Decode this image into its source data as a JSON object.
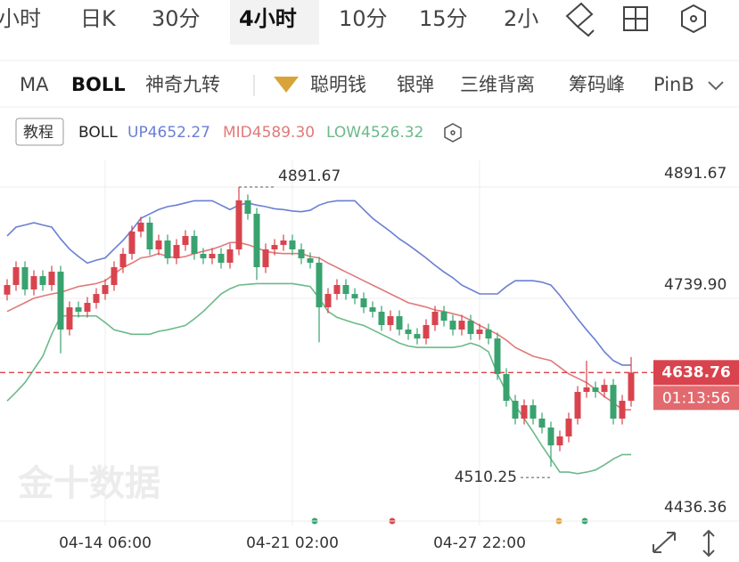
{
  "tabs": [
    "小时",
    "日K",
    "30分",
    "4小时",
    "10分",
    "15分",
    "2小"
  ],
  "indicators": [
    "MA",
    "BOLL",
    "神奇九转",
    "聪明钱",
    "银弹",
    "三维背离",
    "筹码峰",
    "PinB"
  ],
  "legend": {
    "tutorial": "教程",
    "name": "BOLL",
    "up": "UP4652.27",
    "mid": "MID4589.30",
    "low": "LOW4526.32"
  },
  "watermark": "金十数据",
  "chart_data": {
    "type": "candlestick",
    "categories": [
      null,
      null,
      null,
      null,
      null,
      null,
      null,
      null,
      null,
      null,
      null,
      "04-14 06:00",
      null,
      null,
      null,
      null,
      null,
      null,
      null,
      null,
      null,
      null,
      null,
      null,
      null,
      null,
      null,
      null,
      null,
      null,
      null,
      null,
      "04-21 02:00",
      null,
      null,
      null,
      null,
      null,
      null,
      null,
      null,
      null,
      null,
      null,
      null,
      null,
      null,
      null,
      null,
      null,
      null,
      null,
      null,
      "04-27 22:00",
      null,
      null,
      null,
      null,
      null,
      null,
      null,
      null,
      null,
      null,
      null,
      null,
      null,
      null,
      null,
      null,
      null
    ],
    "open": [
      4745.0,
      4758.1,
      4782.4,
      4752.0,
      4770.2,
      4758.1,
      4776.3,
      4697.4,
      4727.7,
      4721.7,
      4733.8,
      4745.9,
      4758.1,
      4782.4,
      4800.6,
      4831.0,
      4843.1,
      4806.7,
      4818.8,
      4794.5,
      4812.7,
      4824.9,
      4800.6,
      4794.5,
      4800.6,
      4788.5,
      4806.7,
      4873.5,
      4855.2,
      4782.4,
      4806.7,
      4812.7,
      4818.8,
      4806.7,
      4794.5,
      4788.5,
      4727.7,
      4745.9,
      4758.1,
      4745.9,
      4739.9,
      4727.7,
      4721.7,
      4703.5,
      4715.6,
      4697.4,
      4691.3,
      4685.2,
      4703.5,
      4721.7,
      4709.5,
      4697.4,
      4709.5,
      4691.3,
      4697.4,
      4685.2,
      4636.7,
      4600.3,
      4576.0,
      4594.2,
      4576.0,
      4563.8,
      4539.5,
      4551.7,
      4576.0,
      4612.4,
      4618.5,
      4612.4,
      4622.0,
      4576.0,
      4600.3
    ],
    "high": [
      4766.1,
      4790.4,
      4790.4,
      4778.2,
      4778.2,
      4784.3,
      4784.3,
      4735.7,
      4735.7,
      4741.8,
      4753.9,
      4766.1,
      4790.4,
      4808.6,
      4839.0,
      4851.1,
      4851.1,
      4826.8,
      4826.8,
      4820.7,
      4832.9,
      4832.9,
      4808.6,
      4808.6,
      4808.6,
      4814.7,
      4891.67,
      4881.5,
      4863.2,
      4814.7,
      4820.7,
      4826.8,
      4826.8,
      4814.7,
      4802.5,
      4796.5,
      4753.9,
      4766.1,
      4766.1,
      4753.9,
      4747.9,
      4735.7,
      4729.7,
      4723.6,
      4723.6,
      4705.4,
      4699.3,
      4711.5,
      4729.7,
      4729.7,
      4717.5,
      4717.5,
      4717.5,
      4705.4,
      4705.4,
      4693.2,
      4644.7,
      4608.3,
      4602.2,
      4602.2,
      4584.0,
      4571.8,
      4559.7,
      4584.0,
      4620.4,
      4655.0,
      4626.5,
      4630.0,
      4630.0,
      4608.3,
      4660.0
    ],
    "low": [
      4737.0,
      4750.1,
      4744.0,
      4744.0,
      4750.1,
      4750.1,
      4665.0,
      4689.4,
      4713.7,
      4713.7,
      4725.8,
      4737.9,
      4750.1,
      4774.4,
      4792.6,
      4823.0,
      4798.7,
      4798.7,
      4786.5,
      4786.5,
      4804.7,
      4792.6,
      4786.5,
      4786.5,
      4780.5,
      4780.5,
      4798.7,
      4847.2,
      4765.0,
      4774.4,
      4798.7,
      4804.7,
      4798.7,
      4786.5,
      4780.5,
      4680.0,
      4719.7,
      4737.9,
      4737.9,
      4731.9,
      4719.7,
      4713.7,
      4695.5,
      4695.5,
      4689.4,
      4683.3,
      4677.2,
      4677.2,
      4695.5,
      4701.5,
      4689.4,
      4689.4,
      4683.3,
      4683.3,
      4677.2,
      4628.7,
      4592.3,
      4568.0,
      4568.0,
      4568.0,
      4555.8,
      4510.25,
      4531.5,
      4543.7,
      4568.0,
      4604.4,
      4604.4,
      4604.4,
      4568.0,
      4568.0,
      4592.3
    ],
    "close": [
      4758.1,
      4782.4,
      4752.0,
      4770.2,
      4758.1,
      4776.3,
      4697.4,
      4727.7,
      4721.7,
      4733.8,
      4745.9,
      4758.1,
      4782.4,
      4800.6,
      4831.0,
      4843.1,
      4806.7,
      4818.8,
      4794.5,
      4812.7,
      4824.9,
      4800.6,
      4794.5,
      4800.6,
      4788.5,
      4806.7,
      4873.5,
      4855.2,
      4782.4,
      4806.7,
      4812.7,
      4818.8,
      4806.7,
      4794.5,
      4788.5,
      4727.7,
      4745.9,
      4758.1,
      4745.9,
      4739.9,
      4727.7,
      4721.7,
      4703.5,
      4715.6,
      4697.4,
      4691.3,
      4685.2,
      4703.5,
      4721.7,
      4709.5,
      4697.4,
      4709.5,
      4691.3,
      4697.4,
      4685.2,
      4636.7,
      4600.3,
      4576.0,
      4594.2,
      4576.0,
      4563.8,
      4539.5,
      4551.7,
      4576.0,
      4612.4,
      4618.5,
      4612.4,
      4622.0,
      4576.0,
      4600.3,
      4638.76
    ],
    "up_color": "#d9434d",
    "down_color": "#39a26f",
    "series": [
      {
        "color": "#6b7fd3",
        "values": [
          4825,
          4837,
          4840,
          4843,
          4840,
          4837,
          4821,
          4807,
          4797,
          4788,
          4792,
          4795,
          4807,
          4819,
          4833,
          4849,
          4855,
          4861,
          4865,
          4867,
          4870,
          4873,
          4873,
          4873,
          4867,
          4861,
          4867,
          4870,
          4867,
          4865,
          4862,
          4861,
          4859,
          4858,
          4860,
          4867,
          4871,
          4873,
          4873,
          4873,
          4861,
          4849,
          4840,
          4831,
          4821,
          4813,
          4804,
          4795,
          4785,
          4776,
          4768,
          4758,
          4752,
          4746,
          4746,
          4746,
          4756,
          4764,
          4764,
          4764,
          4762,
          4758,
          4744,
          4728,
          4712,
          4697,
          4683,
          4667,
          4655,
          4649,
          4649
        ]
      },
      {
        "color": "#e07a7a",
        "values": [
          4722,
          4728,
          4734,
          4740,
          4743,
          4746,
          4748,
          4752,
          4756,
          4758,
          4760,
          4764,
          4773,
          4782,
          4788,
          4795,
          4797,
          4801,
          4797,
          4795,
          4797,
          4801,
          4804,
          4807,
          4811,
          4816,
          4816,
          4813,
          4809,
          4804,
          4802,
          4801,
          4801,
          4801,
          4797,
          4795,
          4788,
          4782,
          4776,
          4770,
          4764,
          4758,
          4752,
          4746,
          4740,
          4734,
          4731,
          4728,
          4724,
          4722,
          4719,
          4716,
          4710,
          4703,
          4697,
          4691,
          4683,
          4673,
          4667,
          4661,
          4658,
          4655,
          4646,
          4637,
          4631,
          4625,
          4616,
          4606,
          4598,
          4588,
          4588
        ]
      },
      {
        "color": "#6cb98a",
        "values": [
          4600,
          4612,
          4625,
          4643,
          4661,
          4691,
          4716,
          4716,
          4716,
          4716,
          4716,
          4707,
          4697,
          4694,
          4691,
          4691,
          4691,
          4695,
          4697,
          4700,
          4703,
          4712,
          4722,
          4734,
          4746,
          4753,
          4758,
          4759,
          4760,
          4760,
          4760,
          4760,
          4760,
          4758,
          4756,
          4740,
          4722,
          4714,
          4710,
          4706,
          4703,
          4697,
          4691,
          4685,
          4679,
          4675,
          4673,
          4673,
          4673,
          4673,
          4673,
          4675,
          4679,
          4675,
          4667,
          4637,
          4612,
          4594,
          4576,
          4558,
          4539,
          4521,
          4503,
          4503,
          4501,
          4503,
          4506,
          4513,
          4521,
          4527,
          4527
        ]
      }
    ],
    "countdown": "01:13:56",
    "ylim": [
      4430.3,
      4988.8
    ],
    "yticks": [
      4891.67,
      {
        "value": 4739.9,
        "label": "4739.90"
      },
      4436.36
    ],
    "grid": true
  }
}
